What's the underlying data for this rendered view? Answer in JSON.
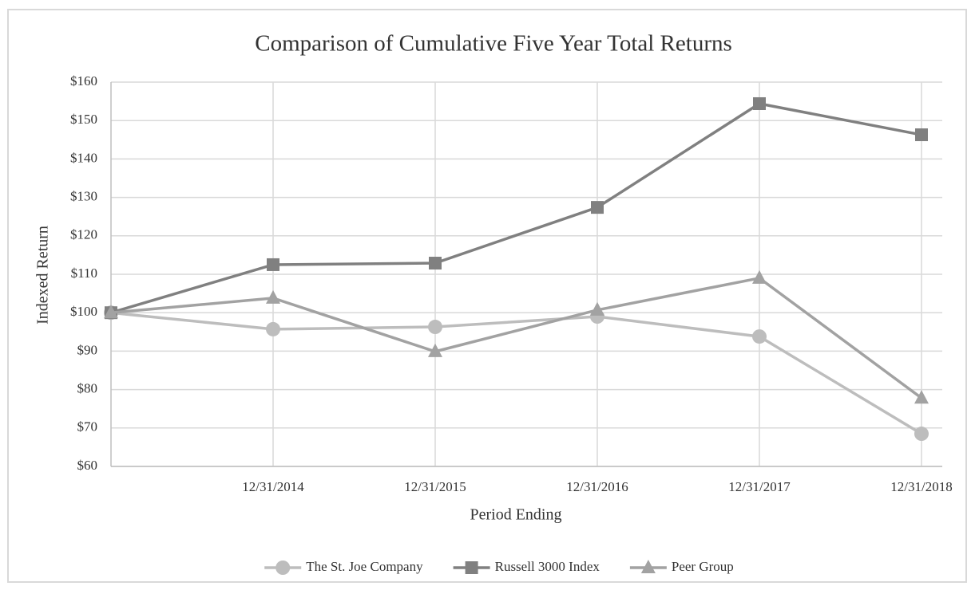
{
  "chart_data": {
    "type": "line",
    "title": "Comparison of Cumulative Five Year Total Returns",
    "x_label": "Period Ending",
    "y_label": "Indexed Return",
    "categories": [
      null,
      "12/31/2014",
      "12/31/2015",
      "12/31/2016",
      "12/31/2017",
      "12/31/2018"
    ],
    "series": [
      {
        "name": "The St. Joe Company",
        "color": "#bdbdbd",
        "marker": "circle",
        "values": [
          100,
          95.7,
          96.3,
          99,
          93.8,
          68.5
        ]
      },
      {
        "name": "Russell 3000 Index",
        "color": "#808080",
        "marker": "square",
        "values": [
          100,
          112.5,
          112.9,
          127.4,
          154.4,
          146.3
        ]
      },
      {
        "name": "Peer Group",
        "color": "#a2a2a2",
        "marker": "triangle",
        "values": [
          100,
          103.8,
          89.9,
          100.7,
          109,
          77.8
        ]
      }
    ],
    "ylim": [
      60,
      160
    ],
    "yticks": [
      {
        "value": 60,
        "label": "$60"
      },
      {
        "value": 70,
        "label": "$70"
      },
      {
        "value": 80,
        "label": "$80"
      },
      {
        "value": 90,
        "label": "$90"
      },
      {
        "value": 100,
        "label": "$100"
      },
      {
        "value": 110,
        "label": "$110"
      },
      {
        "value": 120,
        "label": "$120"
      },
      {
        "value": 130,
        "label": "$130"
      },
      {
        "value": 140,
        "label": "$140"
      },
      {
        "value": 150,
        "label": "$150"
      },
      {
        "value": 160,
        "label": "$160"
      }
    ],
    "grid": true,
    "legend": "bottom"
  }
}
